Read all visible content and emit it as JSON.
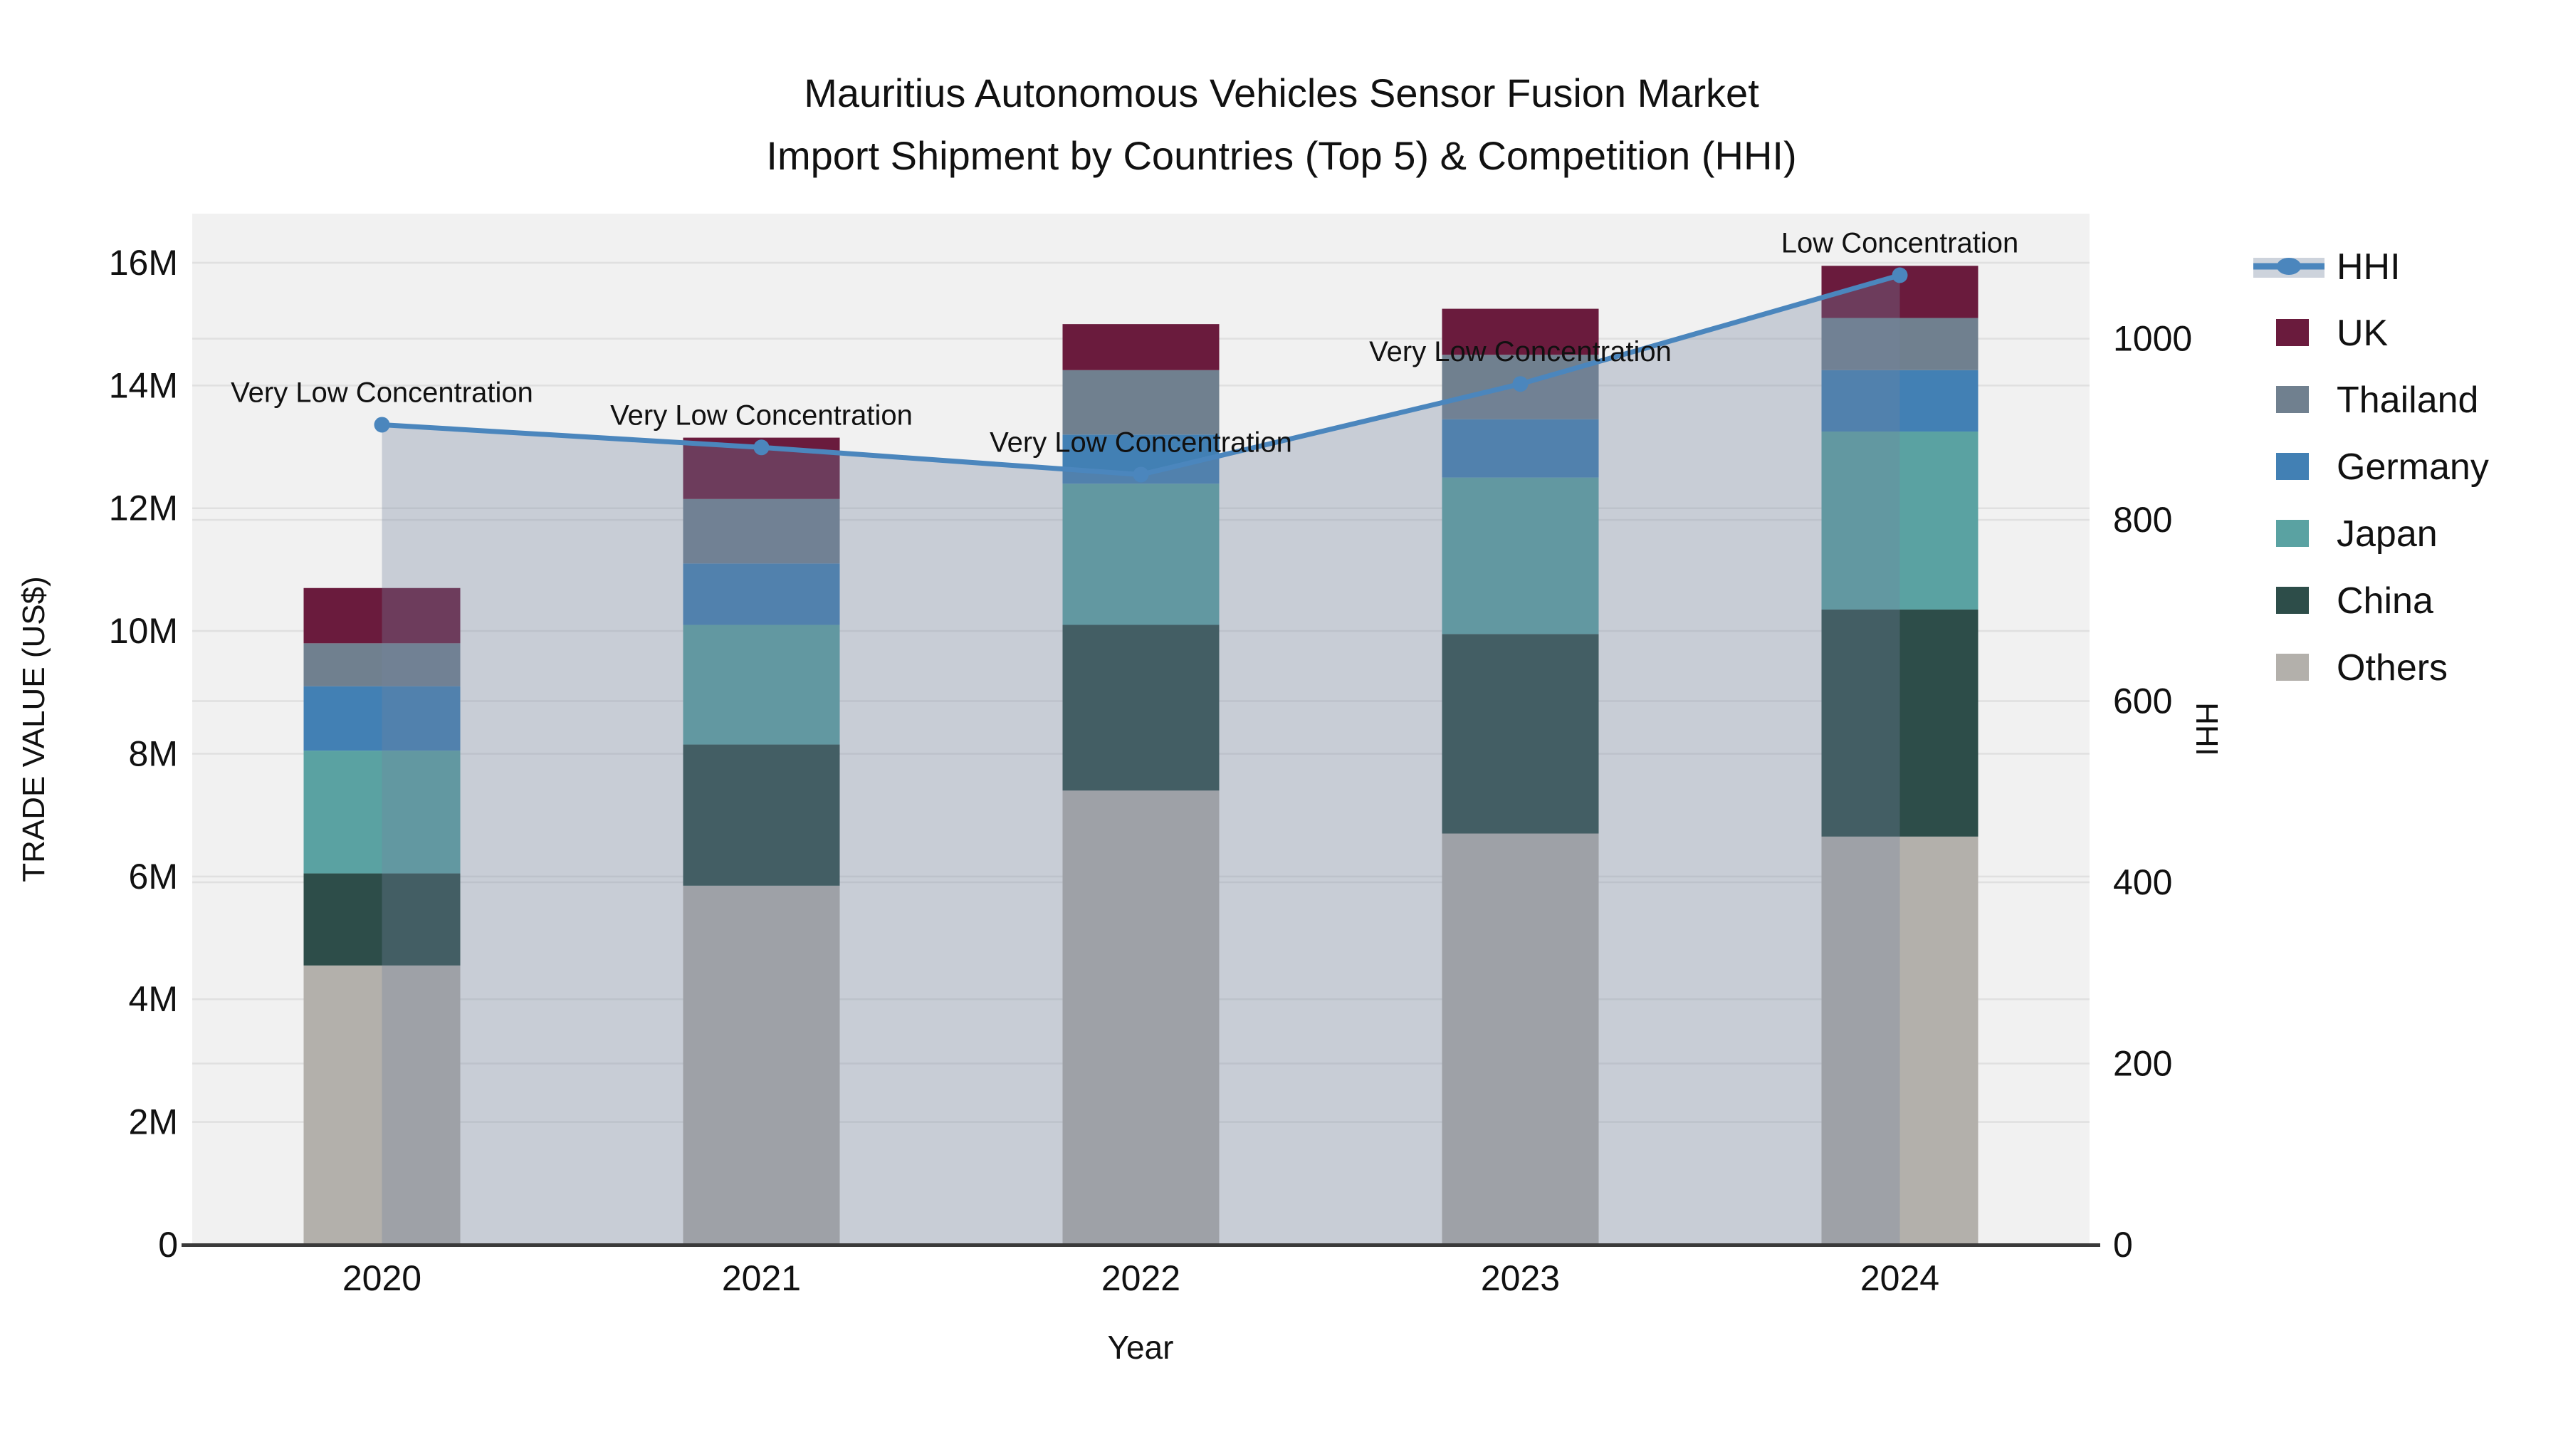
{
  "title": {
    "line1": "Mauritius Autonomous Vehicles Sensor Fusion Market",
    "line2": "Import Shipment by Countries (Top 5) & Competition (HHI)"
  },
  "axes": {
    "left": {
      "label": "TRADE VALUE (US$)"
    },
    "right": {
      "label": "HHI"
    },
    "x": {
      "label": "Year"
    }
  },
  "legend": {
    "items": [
      {
        "label": "HHI",
        "type": "line",
        "color": "#4b86bd"
      },
      {
        "label": "UK",
        "type": "swatch",
        "color": "#6a1b3d"
      },
      {
        "label": "Thailand",
        "type": "swatch",
        "color": "#70808f"
      },
      {
        "label": "Germany",
        "type": "swatch",
        "color": "#4280b4"
      },
      {
        "label": "Japan",
        "type": "swatch",
        "color": "#5aa2a2"
      },
      {
        "label": "China",
        "type": "swatch",
        "color": "#2d4d49"
      },
      {
        "label": "Others",
        "type": "swatch",
        "color": "#b3b0ab"
      }
    ]
  },
  "chart_data": {
    "type": "combo-stacked-bar-with-area-line",
    "categories": [
      "2020",
      "2021",
      "2022",
      "2023",
      "2024"
    ],
    "stack_order_bottom_to_top": [
      "Others",
      "China",
      "Japan",
      "Germany",
      "Thailand",
      "UK"
    ],
    "series": [
      {
        "name": "Others",
        "color": "#b3b0ab",
        "values_million_usd": [
          4.55,
          5.85,
          7.4,
          6.7,
          6.65
        ]
      },
      {
        "name": "China",
        "color": "#2d4d49",
        "values_million_usd": [
          1.5,
          2.3,
          2.7,
          3.25,
          3.7
        ]
      },
      {
        "name": "Japan",
        "color": "#5aa2a2",
        "values_million_usd": [
          2.0,
          1.95,
          2.3,
          2.55,
          2.9
        ]
      },
      {
        "name": "Germany",
        "color": "#4280b4",
        "values_million_usd": [
          1.05,
          1.0,
          0.8,
          0.95,
          1.0
        ]
      },
      {
        "name": "Thailand",
        "color": "#70808f",
        "values_million_usd": [
          0.7,
          1.05,
          1.05,
          1.05,
          0.85
        ]
      },
      {
        "name": "UK",
        "color": "#6a1b3d",
        "values_million_usd": [
          0.9,
          1.0,
          0.75,
          0.75,
          0.85
        ]
      }
    ],
    "bar_totals_million_usd": [
      10.7,
      13.15,
      15.0,
      15.25,
      15.95
    ],
    "hhi_line": {
      "name": "HHI",
      "values": [
        905,
        880,
        850,
        950,
        1070
      ],
      "line_color": "#4b86bd",
      "area_fill": "rgba(115,132,160,0.32)",
      "marker": "circle"
    },
    "annotations": [
      {
        "category": "2020",
        "text": "Very Low Concentration"
      },
      {
        "category": "2021",
        "text": "Very Low Concentration"
      },
      {
        "category": "2022",
        "text": "Very Low Concentration"
      },
      {
        "category": "2023",
        "text": "Very Low Concentration"
      },
      {
        "category": "2024",
        "text": "Low Concentration"
      }
    ],
    "left_axis": {
      "ticks": [
        {
          "v": 0,
          "label": "0"
        },
        {
          "v": 2,
          "label": "2M"
        },
        {
          "v": 4,
          "label": "4M"
        },
        {
          "v": 6,
          "label": "6M"
        },
        {
          "v": 8,
          "label": "8M"
        },
        {
          "v": 10,
          "label": "10M"
        },
        {
          "v": 12,
          "label": "12M"
        },
        {
          "v": 14,
          "label": "14M"
        },
        {
          "v": 16,
          "label": "16M"
        }
      ],
      "max": 16.8,
      "unit": "million US$"
    },
    "right_axis": {
      "ticks": [
        {
          "v": 0,
          "label": "0"
        },
        {
          "v": 200,
          "label": "200"
        },
        {
          "v": 400,
          "label": "400"
        },
        {
          "v": 600,
          "label": "600"
        },
        {
          "v": 800,
          "label": "800"
        },
        {
          "v": 1000,
          "label": "1000"
        }
      ],
      "max": 1138
    },
    "grid": true,
    "legend_position": "right",
    "plot_bg": "#f1f1f1",
    "grid_color": "#e0e0e0",
    "spine_color": "#3a3a3a",
    "text_color": "#111111"
  }
}
